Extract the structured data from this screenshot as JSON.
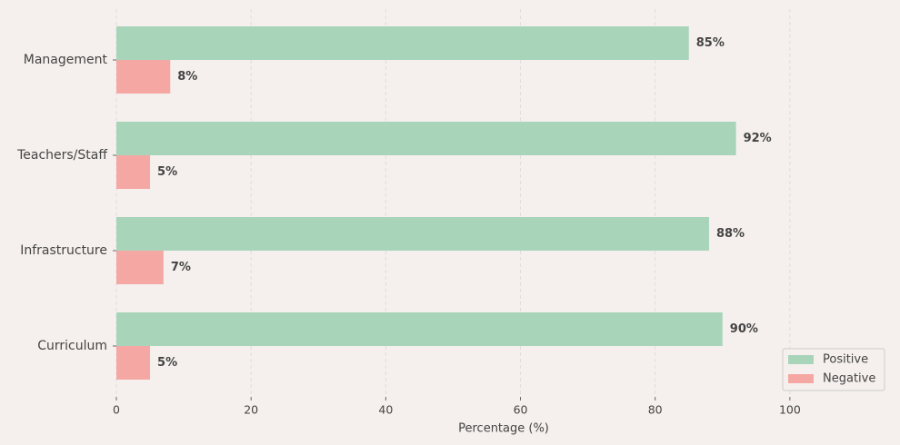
{
  "chart_data": {
    "type": "hbar",
    "categories": [
      "Management",
      "Teachers/Staff",
      "Infrastructure",
      "Curriculum"
    ],
    "series": [
      {
        "name": "Positive",
        "color": "#a8d5ba",
        "values": [
          85,
          92,
          88,
          90
        ],
        "value_labels": [
          "85%",
          "92%",
          "88%",
          "90%"
        ]
      },
      {
        "name": "Negative",
        "color": "#f5a8a3",
        "values": [
          8,
          5,
          7,
          5
        ],
        "value_labels": [
          "8%",
          "5%",
          "7%",
          "5%"
        ]
      }
    ],
    "xlabel": "Percentage (%)",
    "xlim": [
      0,
      115
    ],
    "xticks": [
      0,
      20,
      40,
      60,
      80,
      100
    ],
    "grid": true,
    "legend": "lower right"
  }
}
